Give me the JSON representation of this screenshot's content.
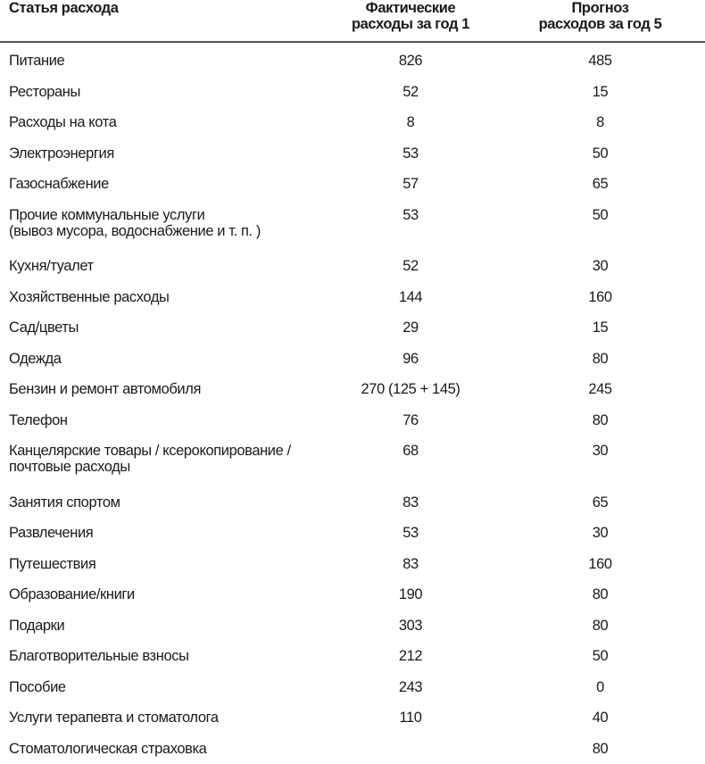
{
  "table": {
    "headers": [
      "Статья расхода",
      "Фактические\nрасходы за год 1",
      "Прогноз\nрасходов за год 5"
    ],
    "header_lines": {
      "col1": [
        "Статья расхода"
      ],
      "col2": [
        "Фактические",
        "расходы за год 1"
      ],
      "col3": [
        "Прогноз",
        "расходов за год 5"
      ]
    },
    "rows": [
      {
        "item": [
          "Питание"
        ],
        "year1": "826",
        "year5": "485"
      },
      {
        "item": [
          "Рестораны"
        ],
        "year1": "52",
        "year5": "15"
      },
      {
        "item": [
          "Расходы на кота"
        ],
        "year1": "8",
        "year5": "8"
      },
      {
        "item": [
          "Электроэнергия"
        ],
        "year1": "53",
        "year5": "50"
      },
      {
        "item": [
          "Газоснабжение"
        ],
        "year1": "57",
        "year5": "65"
      },
      {
        "item": [
          "Прочие коммунальные услуги",
          "(вывоз мусора, водоснабжение и т. п. )"
        ],
        "year1": "53",
        "year5": "50"
      },
      {
        "item": [
          "Кухня/туалет"
        ],
        "year1": "52",
        "year5": "30"
      },
      {
        "item": [
          "Хозяйственные расходы"
        ],
        "year1": "144",
        "year5": "160"
      },
      {
        "item": [
          "Сад/цветы"
        ],
        "year1": "29",
        "year5": "15"
      },
      {
        "item": [
          "Одежда"
        ],
        "year1": "96",
        "year5": "80"
      },
      {
        "item": [
          "Бензин и ремонт автомобиля"
        ],
        "year1": "270 (125 + 145)",
        "year5": "245"
      },
      {
        "item": [
          "Телефон"
        ],
        "year1": "76",
        "year5": "80"
      },
      {
        "item": [
          "Канцелярские товары / ксерокопирование /",
          "почтовые расходы"
        ],
        "year1": "68",
        "year5": "30"
      },
      {
        "item": [
          "Занятия спортом"
        ],
        "year1": "83",
        "year5": "65"
      },
      {
        "item": [
          "Развлечения"
        ],
        "year1": "53",
        "year5": "30"
      },
      {
        "item": [
          "Путешествия"
        ],
        "year1": "83",
        "year5": "160"
      },
      {
        "item": [
          "Образование/книги"
        ],
        "year1": "190",
        "year5": "80"
      },
      {
        "item": [
          "Подарки"
        ],
        "year1": "303",
        "year5": "80"
      },
      {
        "item": [
          "Благотворительные взносы"
        ],
        "year1": "212",
        "year5": "50"
      },
      {
        "item": [
          "Пособие"
        ],
        "year1": "243",
        "year5": "0"
      },
      {
        "item": [
          "Услуги терапевта и стоматолога"
        ],
        "year1": "110",
        "year5": "40"
      },
      {
        "item": [
          "Стоматологическая страховка"
        ],
        "year1": "",
        "year5": "80"
      }
    ]
  }
}
